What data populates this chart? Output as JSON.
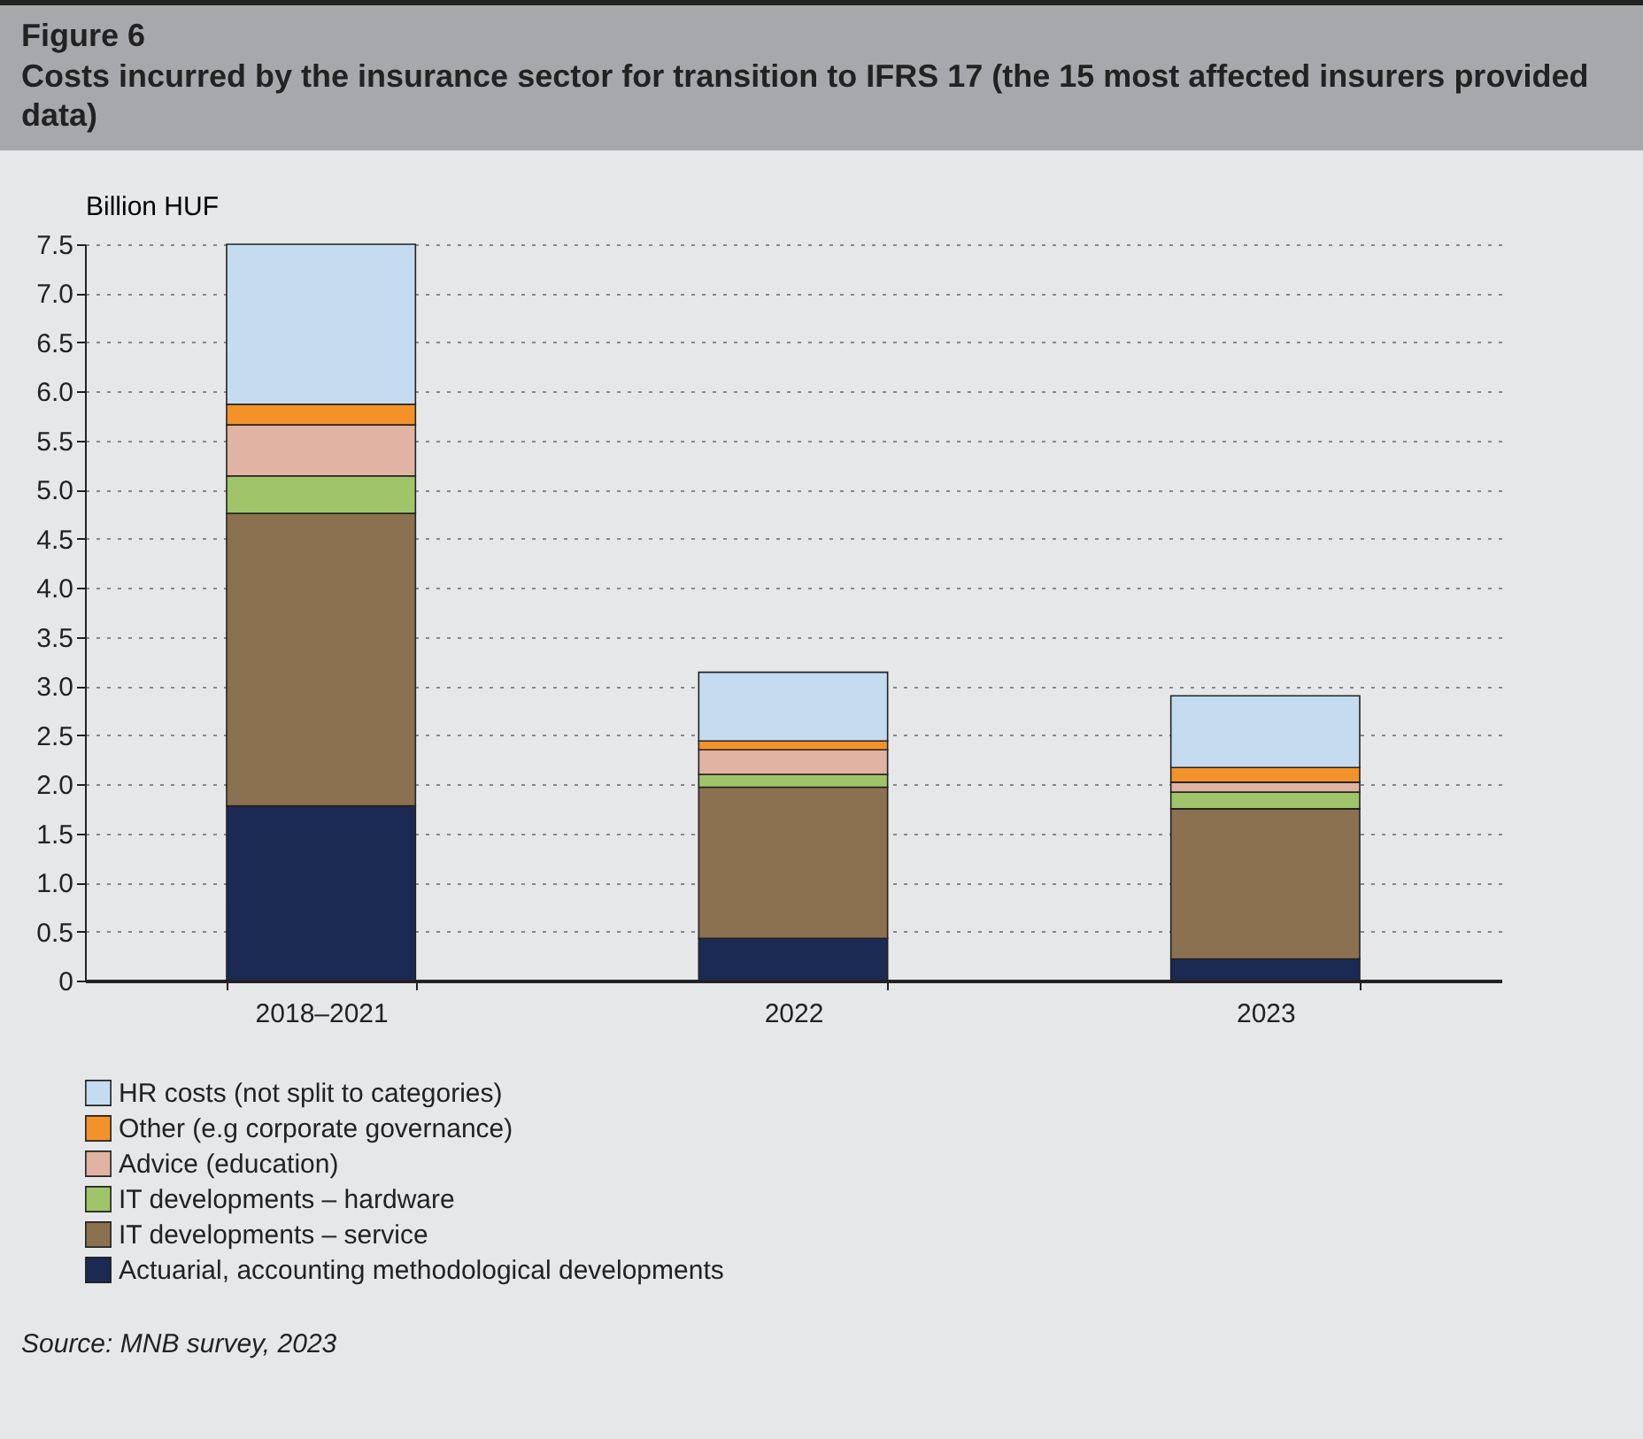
{
  "chart_data": {
    "type": "bar",
    "title": "Figure 6",
    "subtitle": "Costs incurred by the insurance sector for transition to IFRS 17 (the 15 most affected insurers provided data)",
    "ylabel": "Billion HUF",
    "categories": [
      "2018–2021",
      "2022",
      "2023"
    ],
    "stacked": true,
    "series": [
      {
        "name": "Actuarial, accounting methodological developments",
        "color": "#1a2a52",
        "values": [
          1.78,
          0.43,
          0.22
        ]
      },
      {
        "name": "IT developments – service",
        "color": "#8c7150",
        "values": [
          2.98,
          1.54,
          1.53
        ]
      },
      {
        "name": "IT developments – hardware",
        "color": "#9fc46a",
        "values": [
          0.38,
          0.13,
          0.17
        ]
      },
      {
        "name": "Advice (education)",
        "color": "#e0b3a3",
        "values": [
          0.52,
          0.25,
          0.1
        ]
      },
      {
        "name": "Other (e.g corporate governance)",
        "color": "#f4922a",
        "values": [
          0.21,
          0.09,
          0.15
        ]
      },
      {
        "name": "HR costs (not split to categories)",
        "color": "#c5dcf0",
        "values": [
          1.63,
          0.7,
          0.73
        ]
      }
    ],
    "ylim": [
      0,
      7.5
    ],
    "yticks": [
      0,
      {
        "value": 0.5,
        "label": "0.5"
      },
      {
        "value": 1,
        "label": "1.0"
      },
      {
        "value": 1.5,
        "label": "1.5"
      },
      {
        "value": 2,
        "label": "2.0"
      },
      {
        "value": 2.5,
        "label": "2.5"
      },
      {
        "value": 3,
        "label": "3.0"
      },
      {
        "value": 3.5,
        "label": "3.5"
      },
      {
        "value": 4,
        "label": "4.0"
      },
      {
        "value": 4.5,
        "label": "4.5"
      },
      {
        "value": 5,
        "label": "5.0"
      },
      {
        "value": 5.5,
        "label": "5.5"
      },
      {
        "value": 6,
        "label": "6.0"
      },
      {
        "value": 6.5,
        "label": "6.5"
      },
      {
        "value": 7,
        "label": "7.0"
      },
      {
        "value": 7.5,
        "label": "7.5"
      }
    ],
    "grid": "y",
    "legend": "bottom",
    "annotations": [
      "Source: MNB survey, 2023"
    ]
  }
}
